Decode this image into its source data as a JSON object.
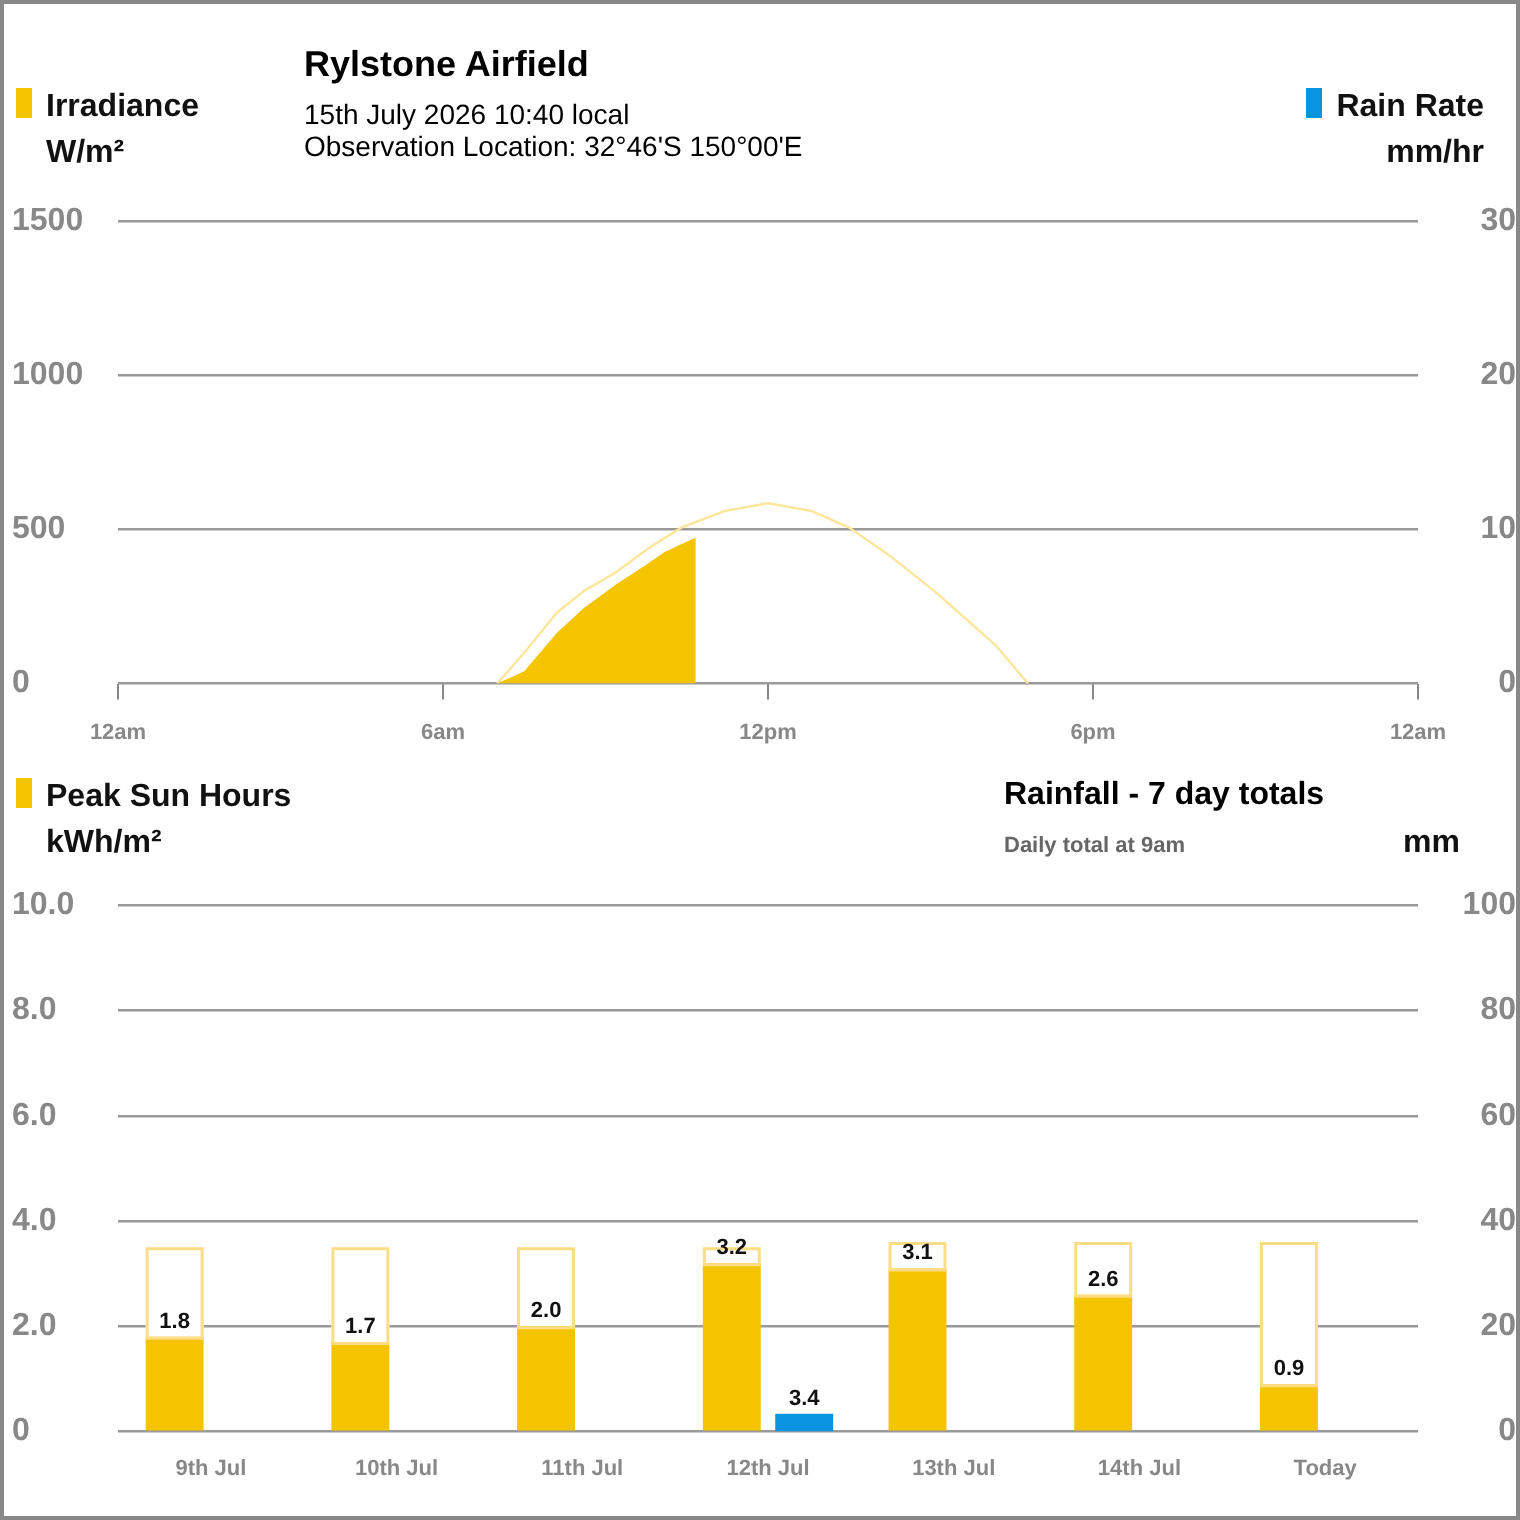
{
  "chart_data": [
    {
      "type": "area",
      "title": "Rylstone Airfield",
      "subtitle": "15th July 2026  10:40 local\nObservation Location: 32°46'S 150°00'E",
      "ylabel": "W/m²",
      "y2label": "mm/hr",
      "xlim": [
        "2026-07-15T00:00",
        "2026-07-16T00:00"
      ],
      "xticks": [
        {
          "value": "2026-07-15T00:00",
          "label": "12am"
        },
        {
          "value": "2026-07-15T06:00",
          "label": "6am"
        },
        {
          "value": "2026-07-15T12:00",
          "label": "12pm"
        },
        {
          "value": "2026-07-15T18:00",
          "label": "6pm"
        },
        {
          "value": "2026-07-16T00:00",
          "label": "12am"
        }
      ],
      "ylim": [
        0,
        1500
      ],
      "yticks": [
        0,
        500,
        1000,
        1500
      ],
      "y2lim": [
        0,
        30
      ],
      "y2ticks": [
        0,
        10,
        20,
        30
      ],
      "grid": "y",
      "legend": "top",
      "series": [
        {
          "name": "Irradiance",
          "type": "area",
          "color": "#f5c400",
          "x": [
            "2026-07-15T07:00",
            "2026-07-15T07:30",
            "2026-07-15T08:06",
            "2026-07-15T08:36",
            "2026-07-15T09:12",
            "2026-07-15T09:42",
            "2026-07-15T10:06",
            "2026-07-15T10:40"
          ],
          "values": [
            0,
            40,
            164,
            245,
            322,
            380,
            428,
            474
          ]
        },
        {
          "type": "line",
          "color": "#fde59a",
          "x": [
            "2026-07-15T07:00",
            "2026-07-15T07:30",
            "2026-07-15T08:06",
            "2026-07-15T08:36",
            "2026-07-15T09:12",
            "2026-07-15T09:48",
            "2026-07-15T10:24",
            "2026-07-15T11:12",
            "2026-07-15T12:00",
            "2026-07-15T12:48",
            "2026-07-15T13:30",
            "2026-07-15T14:18",
            "2026-07-15T15:06",
            "2026-07-15T16:12",
            "2026-07-15T16:48"
          ],
          "values": [
            0,
            100,
            230,
            300,
            362,
            440,
            506,
            560,
            585,
            560,
            506,
            408,
            296,
            125,
            0
          ]
        },
        {
          "name": "Rain Rate",
          "type": "line",
          "axis": "y2",
          "color": "#0a94e0"
        }
      ]
    },
    {
      "type": "bar",
      "title": "Rainfall - 7 day totals",
      "subtitle": "Daily total at 9am",
      "ylabel": "kWh/m²",
      "y2label": "mm",
      "categories": [
        "9th Jul",
        "10th Jul",
        "11th Jul",
        "12th Jul",
        "13th Jul",
        "14th Jul",
        "Today"
      ],
      "ylim": [
        0,
        10
      ],
      "yticks": [
        0,
        {
          "value": 2,
          "label": "2.0"
        },
        {
          "value": 4,
          "label": "4.0"
        },
        {
          "value": 6,
          "label": "6.0"
        },
        {
          "value": 8,
          "label": "8.0"
        },
        {
          "value": 10,
          "label": "10.0"
        }
      ],
      "y2lim": [
        0,
        100
      ],
      "y2ticks": [
        0,
        20,
        40,
        60,
        80,
        100
      ],
      "grid": "y",
      "legend": "top left",
      "stacked": true,
      "series": [
        {
          "name": "Peak Sun Hours",
          "color": "#f5c400",
          "values": [
            1.8,
            1.7,
            2.0,
            3.2,
            3.1,
            2.6,
            0.9
          ],
          "value_labels": [
            "1.8",
            "1.7",
            "2.0",
            "3.2",
            "3.1",
            "2.6",
            "0.9"
          ]
        },
        {
          "color": "#fddc87",
          "line_style": "solid",
          "values": [
            1.7,
            1.8,
            1.5,
            0.3,
            0.5,
            1.0,
            2.7
          ]
        },
        {
          "color": "#0a94e0",
          "axis": "y2",
          "values": [
            0,
            0,
            0,
            3.4,
            0,
            0,
            0
          ],
          "value_labels": [
            null,
            null,
            null,
            "3.4",
            null,
            null,
            null
          ]
        }
      ]
    }
  ]
}
